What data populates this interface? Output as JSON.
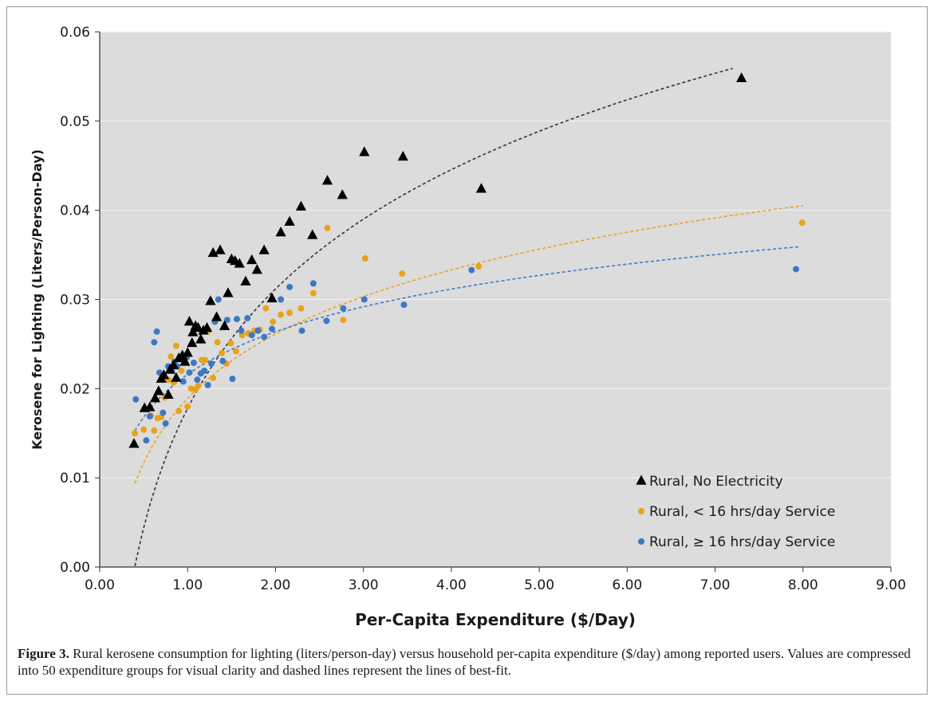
{
  "chart_data": {
    "type": "scatter",
    "title": "",
    "xlabel": "Per-Capita Expenditure ($/Day)",
    "ylabel": "Kerosene for Lighting (Liters/Person-Day)",
    "xlim": [
      0,
      9
    ],
    "ylim": [
      0,
      0.06
    ],
    "x_ticks": [
      "0.00",
      "1.00",
      "2.00",
      "3.00",
      "4.00",
      "5.00",
      "6.00",
      "7.00",
      "8.00",
      "9.00"
    ],
    "y_ticks": [
      "0.00",
      "0.01",
      "0.02",
      "0.03",
      "0.04",
      "0.05",
      "0.06"
    ],
    "grid": true,
    "legend_position": "bottom-right",
    "series": [
      {
        "name": "Rural, No Electricity",
        "marker": "triangle",
        "color": "#000000",
        "trend_color": "#333333",
        "trend_range": [
          0.4,
          7.2
        ],
        "trend_fit": {
          "type": "log",
          "a": 0.0178,
          "b": 0.0193
        },
        "points": [
          [
            0.39,
            0.0138
          ],
          [
            0.51,
            0.0178
          ],
          [
            0.57,
            0.0179
          ],
          [
            0.63,
            0.0189
          ],
          [
            0.67,
            0.0197
          ],
          [
            0.7,
            0.0211
          ],
          [
            0.73,
            0.0215
          ],
          [
            0.78,
            0.0193
          ],
          [
            0.8,
            0.0221
          ],
          [
            0.84,
            0.0226
          ],
          [
            0.87,
            0.0212
          ],
          [
            0.9,
            0.0234
          ],
          [
            0.94,
            0.0237
          ],
          [
            0.97,
            0.023
          ],
          [
            1.0,
            0.024
          ],
          [
            1.02,
            0.0275
          ],
          [
            1.05,
            0.0251
          ],
          [
            1.06,
            0.0263
          ],
          [
            1.09,
            0.027
          ],
          [
            1.12,
            0.0268
          ],
          [
            1.15,
            0.0255
          ],
          [
            1.18,
            0.0265
          ],
          [
            1.22,
            0.0268
          ],
          [
            1.26,
            0.0298
          ],
          [
            1.29,
            0.0352
          ],
          [
            1.33,
            0.028
          ],
          [
            1.37,
            0.0355
          ],
          [
            1.42,
            0.027
          ],
          [
            1.46,
            0.0307
          ],
          [
            1.5,
            0.0345
          ],
          [
            1.54,
            0.0343
          ],
          [
            1.59,
            0.034
          ],
          [
            1.66,
            0.032
          ],
          [
            1.73,
            0.0344
          ],
          [
            1.79,
            0.0333
          ],
          [
            1.87,
            0.0355
          ],
          [
            1.96,
            0.0301
          ],
          [
            2.06,
            0.0375
          ],
          [
            2.16,
            0.0387
          ],
          [
            2.29,
            0.0404
          ],
          [
            2.42,
            0.0372
          ],
          [
            2.59,
            0.0433
          ],
          [
            2.76,
            0.0417
          ],
          [
            3.01,
            0.0465
          ],
          [
            3.45,
            0.046
          ],
          [
            4.34,
            0.0424
          ],
          [
            7.3,
            0.0548
          ]
        ]
      },
      {
        "name": "Rural, < 16 hrs/day Service",
        "marker": "circle",
        "color": "#e8a31c",
        "trend_color": "#e8a31c",
        "trend_range": [
          0.4,
          8.0
        ],
        "trend_fit": {
          "type": "log",
          "a": 0.0189,
          "b": 0.0104
        },
        "points": [
          [
            0.4,
            0.015
          ],
          [
            0.5,
            0.0154
          ],
          [
            0.58,
            0.017
          ],
          [
            0.62,
            0.0153
          ],
          [
            0.66,
            0.0167
          ],
          [
            0.7,
            0.0168
          ],
          [
            0.74,
            0.019
          ],
          [
            0.78,
            0.021
          ],
          [
            0.81,
            0.0236
          ],
          [
            0.84,
            0.0207
          ],
          [
            0.87,
            0.0248
          ],
          [
            0.9,
            0.0175
          ],
          [
            0.93,
            0.022
          ],
          [
            0.97,
            0.023
          ],
          [
            1.0,
            0.018
          ],
          [
            1.04,
            0.02
          ],
          [
            1.09,
            0.0199
          ],
          [
            1.12,
            0.0203
          ],
          [
            1.16,
            0.0232
          ],
          [
            1.2,
            0.0232
          ],
          [
            1.24,
            0.0265
          ],
          [
            1.29,
            0.0212
          ],
          [
            1.34,
            0.0252
          ],
          [
            1.39,
            0.024
          ],
          [
            1.44,
            0.0228
          ],
          [
            1.49,
            0.0251
          ],
          [
            1.55,
            0.0242
          ],
          [
            1.62,
            0.026
          ],
          [
            1.69,
            0.0262
          ],
          [
            1.76,
            0.0265
          ],
          [
            1.82,
            0.0266
          ],
          [
            1.89,
            0.029
          ],
          [
            1.97,
            0.0275
          ],
          [
            2.06,
            0.0283
          ],
          [
            2.16,
            0.0285
          ],
          [
            2.29,
            0.029
          ],
          [
            2.43,
            0.0307
          ],
          [
            2.59,
            0.038
          ],
          [
            2.77,
            0.0277
          ],
          [
            3.02,
            0.0346
          ],
          [
            3.44,
            0.0329
          ],
          [
            4.31,
            0.0337
          ],
          [
            7.99,
            0.0386
          ]
        ]
      },
      {
        "name": "Rural, ≥ 16 hrs/day Service",
        "marker": "circle",
        "color": "#3b79c3",
        "trend_color": "#3b79c3",
        "trend_range": [
          0.4,
          7.95
        ],
        "trend_fit": {
          "type": "log",
          "a": 0.0216,
          "b": 0.0069
        },
        "points": [
          [
            0.41,
            0.0188
          ],
          [
            0.53,
            0.0142
          ],
          [
            0.57,
            0.0169
          ],
          [
            0.62,
            0.0252
          ],
          [
            0.65,
            0.0264
          ],
          [
            0.68,
            0.0218
          ],
          [
            0.72,
            0.0173
          ],
          [
            0.75,
            0.0161
          ],
          [
            0.78,
            0.0225
          ],
          [
            0.82,
            0.022
          ],
          [
            0.85,
            0.023
          ],
          [
            0.88,
            0.0225
          ],
          [
            0.91,
            0.0234
          ],
          [
            0.95,
            0.0208
          ],
          [
            0.99,
            0.0235
          ],
          [
            1.02,
            0.0218
          ],
          [
            1.07,
            0.0229
          ],
          [
            1.11,
            0.021
          ],
          [
            1.15,
            0.0217
          ],
          [
            1.19,
            0.022
          ],
          [
            1.23,
            0.0204
          ],
          [
            1.27,
            0.0228
          ],
          [
            1.31,
            0.0275
          ],
          [
            1.35,
            0.03
          ],
          [
            1.4,
            0.0231
          ],
          [
            1.45,
            0.0277
          ],
          [
            1.51,
            0.0211
          ],
          [
            1.56,
            0.0278
          ],
          [
            1.61,
            0.0265
          ],
          [
            1.68,
            0.0279
          ],
          [
            1.73,
            0.026
          ],
          [
            1.8,
            0.0265
          ],
          [
            1.87,
            0.0258
          ],
          [
            1.96,
            0.0267
          ],
          [
            2.06,
            0.03
          ],
          [
            2.16,
            0.0314
          ],
          [
            2.3,
            0.0265
          ],
          [
            2.43,
            0.0318
          ],
          [
            2.58,
            0.0276
          ],
          [
            2.77,
            0.029
          ],
          [
            3.01,
            0.03
          ],
          [
            3.46,
            0.0294
          ],
          [
            4.23,
            0.0333
          ],
          [
            7.92,
            0.0334
          ]
        ]
      }
    ]
  },
  "caption": {
    "label": "Figure 3.",
    "text": " Rural kerosene consumption for lighting (liters/person-day) versus household per-capita expenditure ($/day) among reported users. Values are compressed into 50 expenditure groups for visual clarity and dashed lines represent the lines of best-fit."
  }
}
